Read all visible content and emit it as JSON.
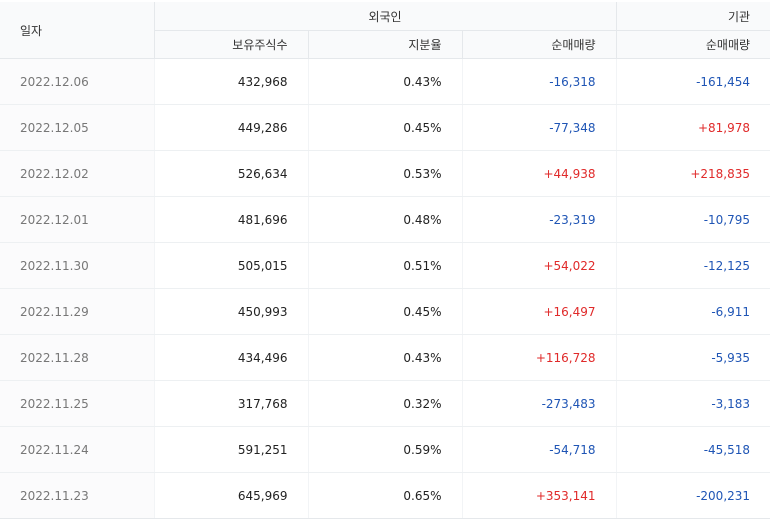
{
  "header": {
    "date": "일자",
    "foreign": "외국인",
    "institution": "기관",
    "holdings": "보유주식수",
    "share_ratio": "지분율",
    "foreign_net": "순매매량",
    "inst_net": "순매매량"
  },
  "colors": {
    "negative": "#1f55b5",
    "positive": "#e02a2a"
  },
  "rows": [
    {
      "date": "2022.12.06",
      "holdings": "432,968",
      "ratio": "0.43%",
      "foreign_net": "-16,318",
      "inst_net": "-161,454"
    },
    {
      "date": "2022.12.05",
      "holdings": "449,286",
      "ratio": "0.45%",
      "foreign_net": "-77,348",
      "inst_net": "+81,978"
    },
    {
      "date": "2022.12.02",
      "holdings": "526,634",
      "ratio": "0.53%",
      "foreign_net": "+44,938",
      "inst_net": "+218,835"
    },
    {
      "date": "2022.12.01",
      "holdings": "481,696",
      "ratio": "0.48%",
      "foreign_net": "-23,319",
      "inst_net": "-10,795"
    },
    {
      "date": "2022.11.30",
      "holdings": "505,015",
      "ratio": "0.51%",
      "foreign_net": "+54,022",
      "inst_net": "-12,125"
    },
    {
      "date": "2022.11.29",
      "holdings": "450,993",
      "ratio": "0.45%",
      "foreign_net": "+16,497",
      "inst_net": "-6,911"
    },
    {
      "date": "2022.11.28",
      "holdings": "434,496",
      "ratio": "0.43%",
      "foreign_net": "+116,728",
      "inst_net": "-5,935"
    },
    {
      "date": "2022.11.25",
      "holdings": "317,768",
      "ratio": "0.32%",
      "foreign_net": "-273,483",
      "inst_net": "-3,183"
    },
    {
      "date": "2022.11.24",
      "holdings": "591,251",
      "ratio": "0.59%",
      "foreign_net": "-54,718",
      "inst_net": "-45,518"
    },
    {
      "date": "2022.11.23",
      "holdings": "645,969",
      "ratio": "0.65%",
      "foreign_net": "+353,141",
      "inst_net": "-200,231"
    }
  ]
}
